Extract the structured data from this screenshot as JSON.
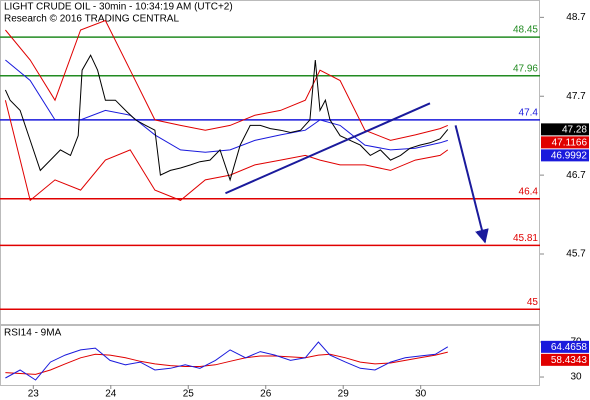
{
  "chart_data": [
    {
      "type": "line",
      "title": "LIGHT CRUDE OIL - 30min - 10:34:19 AM (UTC+2)",
      "subtitle": "Research © 2016 TRADING CENTRAL",
      "xlim": [
        -0.43,
        6.54
      ],
      "ylim": [
        44.8,
        48.92
      ],
      "yticks": [
        45.7,
        46.7,
        47.7,
        48.7
      ],
      "series": [
        {
          "color": "#e00000",
          "x": [
            -0.36,
            -0.04,
            0.28,
            0.61,
            0.93,
            1.25,
            1.57,
            1.9,
            2.22,
            2.54,
            2.86,
            3.19,
            3.51,
            3.7,
            3.96,
            4.28,
            4.61,
            4.93,
            5.25,
            5.35
          ],
          "values": [
            48.54,
            48.16,
            47.65,
            48.54,
            48.66,
            48.03,
            47.4,
            47.33,
            47.27,
            47.33,
            47.46,
            47.52,
            47.65,
            48.03,
            47.9,
            47.27,
            47.14,
            47.21,
            47.29,
            47.33
          ]
        },
        {
          "color": "#e00000",
          "x": [
            -0.36,
            -0.04,
            0.28,
            0.61,
            0.93,
            1.25,
            1.57,
            1.9,
            2.22,
            2.54,
            2.86,
            3.19,
            3.51,
            3.7,
            3.96,
            4.28,
            4.61,
            4.93,
            5.25,
            5.35
          ],
          "values": [
            47.65,
            46.38,
            46.64,
            46.51,
            46.89,
            47.02,
            46.51,
            46.38,
            46.64,
            46.7,
            46.83,
            46.89,
            46.95,
            46.89,
            46.83,
            46.83,
            46.76,
            46.89,
            46.95,
            47.02
          ]
        },
        {
          "color": "#1a1adc",
          "x": [
            -0.36,
            -0.04,
            0.28,
            0.61,
            0.93,
            1.25,
            1.57,
            1.9,
            2.22,
            2.54,
            2.86,
            3.19,
            3.51,
            3.7,
            3.96,
            4.28,
            4.61,
            4.93,
            5.25,
            5.35
          ],
          "values": [
            48.16,
            47.9,
            47.4,
            47.4,
            47.52,
            47.46,
            47.21,
            47.02,
            46.99,
            47.02,
            47.14,
            47.21,
            47.27,
            47.4,
            47.33,
            47.08,
            47.02,
            47.04,
            47.11,
            47.14
          ]
        },
        {
          "color": "#000000",
          "x": [
            -0.36,
            -0.3,
            -0.17,
            -0.04,
            0.09,
            0.22,
            0.35,
            0.48,
            0.58,
            0.63,
            0.74,
            0.83,
            0.93,
            1.06,
            1.19,
            1.32,
            1.45,
            1.57,
            1.64,
            1.77,
            1.9,
            2.03,
            2.15,
            2.28,
            2.41,
            2.54,
            2.67,
            2.8,
            2.93,
            3.06,
            3.19,
            3.32,
            3.45,
            3.57,
            3.64,
            3.7,
            3.77,
            3.83,
            3.96,
            4.09,
            4.22,
            4.35,
            4.48,
            4.61,
            4.74,
            4.86,
            4.99,
            5.12,
            5.25,
            5.35
          ],
          "values": [
            47.78,
            47.65,
            47.52,
            47.14,
            46.76,
            46.89,
            47.02,
            46.95,
            47.2,
            48.03,
            48.22,
            48.03,
            47.65,
            47.65,
            47.52,
            47.4,
            47.33,
            47.27,
            46.7,
            46.76,
            46.79,
            46.83,
            46.87,
            46.89,
            47.02,
            46.64,
            47.08,
            47.33,
            47.33,
            47.29,
            47.27,
            47.24,
            47.27,
            47.4,
            48.16,
            47.52,
            47.65,
            47.4,
            47.2,
            47.14,
            47.08,
            46.95,
            47.02,
            46.89,
            46.95,
            47.04,
            47.08,
            47.11,
            47.16,
            47.28
          ]
        }
      ],
      "levels": [
        {
          "value": 48.45,
          "color": "#228b22"
        },
        {
          "value": 47.96,
          "color": "#228b22"
        },
        {
          "value": 47.4,
          "color": "#1a1adc"
        },
        {
          "value": 46.4,
          "color": "#e00000"
        },
        {
          "value": 45.81,
          "color": "#e00000"
        },
        {
          "value": 45,
          "color": "#e00000"
        }
      ],
      "lines": [
        {
          "color": "#1a1a9c",
          "x": [
            2.48,
            5.12
          ],
          "y": [
            46.47,
            47.61
          ]
        },
        {
          "color": "#1a1a9c",
          "arrow": true,
          "x": [
            5.45,
            5.83
          ],
          "y": [
            47.33,
            45.85
          ]
        }
      ],
      "price_labels": [
        {
          "value": 47.28,
          "color": "#000000"
        },
        {
          "value": 47.1166,
          "color": "#e00000"
        },
        {
          "value": 46.9992,
          "color": "#1a1adc"
        }
      ]
    },
    {
      "type": "line",
      "title": "RSI14 - 9MA",
      "xlim": [
        -0.43,
        6.54
      ],
      "ylim": [
        20.9,
        89.4
      ],
      "yticks": [
        30,
        70
      ],
      "xticks": [
        {
          "value": 0,
          "label": "23"
        },
        {
          "value": 1,
          "label": "24"
        },
        {
          "value": 2,
          "label": "25"
        },
        {
          "value": 3,
          "label": "26"
        },
        {
          "value": 4,
          "label": "29"
        },
        {
          "value": 5,
          "label": "30"
        }
      ],
      "series": [
        {
          "color": "#e00000",
          "x": [
            -0.36,
            -0.17,
            0.03,
            0.22,
            0.41,
            0.61,
            0.8,
            0.99,
            1.19,
            1.38,
            1.57,
            1.77,
            1.96,
            2.15,
            2.35,
            2.54,
            2.74,
            2.93,
            3.12,
            3.32,
            3.51,
            3.68,
            3.83,
            4.03,
            4.22,
            4.41,
            4.61,
            4.8,
            4.99,
            5.19,
            5.35
          ],
          "values": [
            35,
            34,
            33,
            38,
            45,
            52,
            56,
            55,
            52,
            48,
            45,
            43,
            42,
            42,
            44,
            48,
            52,
            54,
            54,
            53,
            52,
            55,
            56,
            52,
            47,
            45,
            46,
            49,
            52,
            55,
            58.4343
          ]
        },
        {
          "color": "#1a1adc",
          "x": [
            -0.36,
            -0.17,
            0.03,
            0.22,
            0.41,
            0.61,
            0.8,
            0.99,
            1.19,
            1.38,
            1.57,
            1.77,
            1.96,
            2.15,
            2.35,
            2.54,
            2.74,
            2.93,
            3.12,
            3.32,
            3.51,
            3.68,
            3.83,
            4.03,
            4.22,
            4.41,
            4.61,
            4.8,
            4.99,
            5.19,
            5.35
          ],
          "values": [
            28.9,
            38,
            26.6,
            47,
            55,
            61,
            63,
            49,
            44,
            47,
            38,
            40,
            44,
            40,
            49,
            61,
            52,
            59,
            55,
            49,
            52,
            70,
            55,
            47,
            40,
            38,
            47,
            52,
            54,
            56,
            64.4658
          ]
        }
      ],
      "price_labels": [
        {
          "value": 64.4658,
          "color": "#1a1adc"
        },
        {
          "value": 58.4343,
          "color": "#e00000"
        }
      ]
    }
  ]
}
